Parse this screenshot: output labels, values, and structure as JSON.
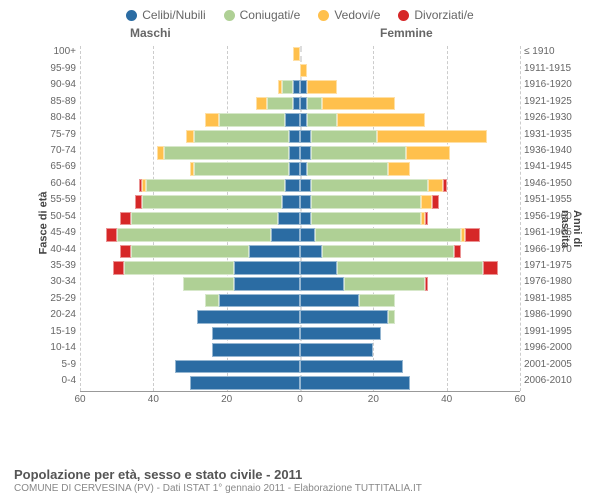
{
  "legend": [
    {
      "label": "Celibi/Nubili",
      "color": "#2b6ca3"
    },
    {
      "label": "Coniugati/e",
      "color": "#afd095"
    },
    {
      "label": "Vedovi/e",
      "color": "#ffc04c"
    },
    {
      "label": "Divorziati/e",
      "color": "#d62728"
    }
  ],
  "headers": {
    "male": "Maschi",
    "female": "Femmine"
  },
  "axis": {
    "left_title": "Fasce di età",
    "right_title": "Anni di nascita",
    "xmax": 60,
    "xticks": [
      60,
      40,
      20,
      0,
      20,
      40,
      60
    ]
  },
  "colors": {
    "celibi": "#2b6ca3",
    "coniugati": "#afd095",
    "vedovi": "#ffc04c",
    "divorziati": "#d62728",
    "bg": "#ffffff",
    "grid": "#cccccc"
  },
  "title": "Popolazione per età, sesso e stato civile - 2011",
  "subtitle": "COMUNE DI CERVESINA (PV) - Dati ISTAT 1° gennaio 2011 - Elaborazione TUTTITALIA.IT",
  "rows": [
    {
      "age": "100+",
      "birth": "≤ 1910",
      "m": {
        "c": 0,
        "o": 0,
        "v": 2,
        "d": 0
      },
      "f": {
        "c": 0,
        "o": 0,
        "v": 0,
        "d": 0
      }
    },
    {
      "age": "95-99",
      "birth": "1911-1915",
      "m": {
        "c": 0,
        "o": 0,
        "v": 0,
        "d": 0
      },
      "f": {
        "c": 0,
        "o": 0,
        "v": 2,
        "d": 0
      }
    },
    {
      "age": "90-94",
      "birth": "1916-1920",
      "m": {
        "c": 2,
        "o": 3,
        "v": 1,
        "d": 0
      },
      "f": {
        "c": 2,
        "o": 0,
        "v": 8,
        "d": 0
      }
    },
    {
      "age": "85-89",
      "birth": "1921-1925",
      "m": {
        "c": 2,
        "o": 7,
        "v": 3,
        "d": 0
      },
      "f": {
        "c": 2,
        "o": 4,
        "v": 20,
        "d": 0
      }
    },
    {
      "age": "80-84",
      "birth": "1926-1930",
      "m": {
        "c": 4,
        "o": 18,
        "v": 4,
        "d": 0
      },
      "f": {
        "c": 2,
        "o": 8,
        "v": 24,
        "d": 0
      }
    },
    {
      "age": "75-79",
      "birth": "1931-1935",
      "m": {
        "c": 3,
        "o": 26,
        "v": 2,
        "d": 0
      },
      "f": {
        "c": 3,
        "o": 18,
        "v": 30,
        "d": 0
      }
    },
    {
      "age": "70-74",
      "birth": "1936-1940",
      "m": {
        "c": 3,
        "o": 34,
        "v": 2,
        "d": 0
      },
      "f": {
        "c": 3,
        "o": 26,
        "v": 12,
        "d": 0
      }
    },
    {
      "age": "65-69",
      "birth": "1941-1945",
      "m": {
        "c": 3,
        "o": 26,
        "v": 1,
        "d": 0
      },
      "f": {
        "c": 2,
        "o": 22,
        "v": 6,
        "d": 0
      }
    },
    {
      "age": "60-64",
      "birth": "1946-1950",
      "m": {
        "c": 4,
        "o": 38,
        "v": 1,
        "d": 1
      },
      "f": {
        "c": 3,
        "o": 32,
        "v": 4,
        "d": 1
      }
    },
    {
      "age": "55-59",
      "birth": "1951-1955",
      "m": {
        "c": 5,
        "o": 38,
        "v": 0,
        "d": 2
      },
      "f": {
        "c": 3,
        "o": 30,
        "v": 3,
        "d": 2
      }
    },
    {
      "age": "50-54",
      "birth": "1956-1960",
      "m": {
        "c": 6,
        "o": 40,
        "v": 0,
        "d": 3
      },
      "f": {
        "c": 3,
        "o": 30,
        "v": 1,
        "d": 1
      }
    },
    {
      "age": "45-49",
      "birth": "1961-1965",
      "m": {
        "c": 8,
        "o": 42,
        "v": 0,
        "d": 3
      },
      "f": {
        "c": 4,
        "o": 40,
        "v": 1,
        "d": 4
      }
    },
    {
      "age": "40-44",
      "birth": "1966-1970",
      "m": {
        "c": 14,
        "o": 32,
        "v": 0,
        "d": 3
      },
      "f": {
        "c": 6,
        "o": 36,
        "v": 0,
        "d": 2
      }
    },
    {
      "age": "35-39",
      "birth": "1971-1975",
      "m": {
        "c": 18,
        "o": 30,
        "v": 0,
        "d": 3
      },
      "f": {
        "c": 10,
        "o": 40,
        "v": 0,
        "d": 4
      }
    },
    {
      "age": "30-34",
      "birth": "1976-1980",
      "m": {
        "c": 18,
        "o": 14,
        "v": 0,
        "d": 0
      },
      "f": {
        "c": 12,
        "o": 22,
        "v": 0,
        "d": 1
      }
    },
    {
      "age": "25-29",
      "birth": "1981-1985",
      "m": {
        "c": 22,
        "o": 4,
        "v": 0,
        "d": 0
      },
      "f": {
        "c": 16,
        "o": 10,
        "v": 0,
        "d": 0
      }
    },
    {
      "age": "20-24",
      "birth": "1986-1990",
      "m": {
        "c": 28,
        "o": 0,
        "v": 0,
        "d": 0
      },
      "f": {
        "c": 24,
        "o": 2,
        "v": 0,
        "d": 0
      }
    },
    {
      "age": "15-19",
      "birth": "1991-1995",
      "m": {
        "c": 24,
        "o": 0,
        "v": 0,
        "d": 0
      },
      "f": {
        "c": 22,
        "o": 0,
        "v": 0,
        "d": 0
      }
    },
    {
      "age": "10-14",
      "birth": "1996-2000",
      "m": {
        "c": 24,
        "o": 0,
        "v": 0,
        "d": 0
      },
      "f": {
        "c": 20,
        "o": 0,
        "v": 0,
        "d": 0
      }
    },
    {
      "age": "5-9",
      "birth": "2001-2005",
      "m": {
        "c": 34,
        "o": 0,
        "v": 0,
        "d": 0
      },
      "f": {
        "c": 28,
        "o": 0,
        "v": 0,
        "d": 0
      }
    },
    {
      "age": "0-4",
      "birth": "2006-2010",
      "m": {
        "c": 30,
        "o": 0,
        "v": 0,
        "d": 0
      },
      "f": {
        "c": 30,
        "o": 0,
        "v": 0,
        "d": 0
      }
    }
  ]
}
